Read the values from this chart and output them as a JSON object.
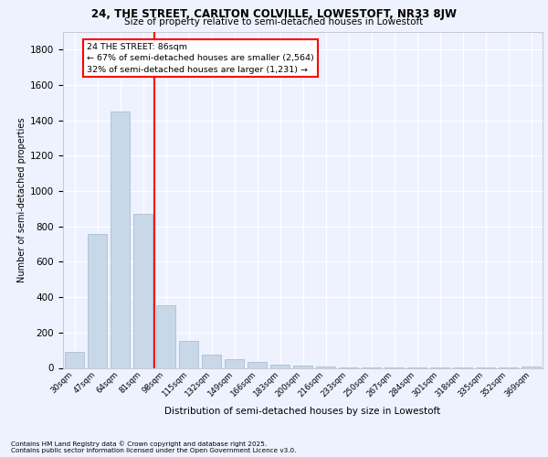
{
  "title1": "24, THE STREET, CARLTON COLVILLE, LOWESTOFT, NR33 8JW",
  "title2": "Size of property relative to semi-detached houses in Lowestoft",
  "xlabel": "Distribution of semi-detached houses by size in Lowestoft",
  "ylabel": "Number of semi-detached properties",
  "categories": [
    "30sqm",
    "47sqm",
    "64sqm",
    "81sqm",
    "98sqm",
    "115sqm",
    "132sqm",
    "149sqm",
    "166sqm",
    "183sqm",
    "200sqm",
    "216sqm",
    "233sqm",
    "250sqm",
    "267sqm",
    "284sqm",
    "301sqm",
    "318sqm",
    "335sqm",
    "352sqm",
    "369sqm"
  ],
  "values": [
    90,
    760,
    1450,
    870,
    355,
    155,
    75,
    50,
    35,
    20,
    15,
    10,
    5,
    3,
    2,
    2,
    1,
    1,
    1,
    1,
    8
  ],
  "bar_color": "#c8d8e8",
  "bar_edgecolor": "#a0b8cc",
  "red_line_index": 3.5,
  "red_line_label": "24 THE STREET: 86sqm",
  "annotation_text1": "← 67% of semi-detached houses are smaller (2,564)",
  "annotation_text2": "32% of semi-detached houses are larger (1,231) →",
  "ylim": [
    0,
    1900
  ],
  "yticks": [
    0,
    200,
    400,
    600,
    800,
    1000,
    1200,
    1400,
    1600,
    1800
  ],
  "background_color": "#eef2ff",
  "grid_color": "#ffffff",
  "footer1": "Contains HM Land Registry data © Crown copyright and database right 2025.",
  "footer2": "Contains public sector information licensed under the Open Government Licence v3.0."
}
